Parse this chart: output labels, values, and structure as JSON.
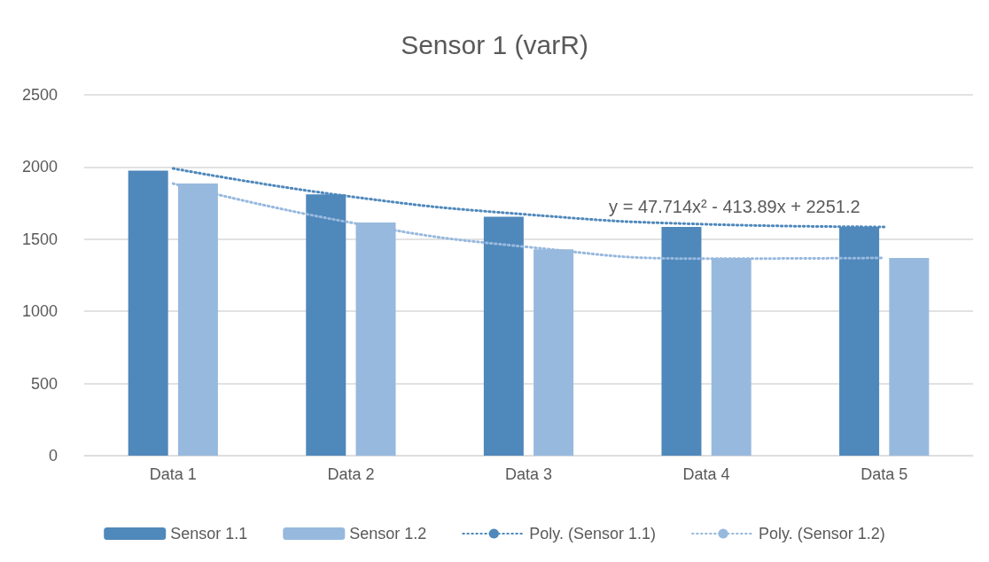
{
  "chart_data": {
    "type": "bar",
    "title": "Sensor 1 (varR)",
    "categories": [
      "Data 1",
      "Data 2",
      "Data 3",
      "Data 4",
      "Data 5"
    ],
    "series": [
      {
        "name": "Sensor 1.1",
        "color": "#4f88bb",
        "values": [
          1975,
          1810,
          1655,
          1585,
          1585
        ]
      },
      {
        "name": "Sensor 1.2",
        "color": "#98b9de",
        "values": [
          1885,
          1615,
          1430,
          1370,
          1370
        ]
      },
      {
        "name": "Poly. (Sensor 1.1)",
        "type": "line",
        "color": "#4f88bb",
        "line_style": "dotted",
        "marker": "none",
        "x": [
          "Data 1",
          "Data 2",
          "Data 3",
          "Data 4",
          "Data 5"
        ],
        "values": [
          1990,
          1795,
          1670,
          1603,
          1585
        ]
      },
      {
        "name": "Poly. (Sensor 1.2)",
        "type": "line",
        "color": "#98b9de",
        "line_style": "dotted",
        "marker": "none",
        "x": [
          "Data 1",
          "Data 2",
          "Data 3",
          "Data 4",
          "Data 5"
        ],
        "values": [
          1885,
          1615,
          1445,
          1365,
          1370
        ]
      }
    ],
    "annotations": [
      {
        "text": "y = 47.714x² - 413.89x + 2251.2",
        "x": "Data 4",
        "y": 1603
      }
    ],
    "ylim": [
      0,
      2500
    ],
    "yticks": [
      0,
      500,
      1000,
      1500,
      2000,
      2500
    ],
    "grid": "y",
    "legend": "bottom"
  }
}
